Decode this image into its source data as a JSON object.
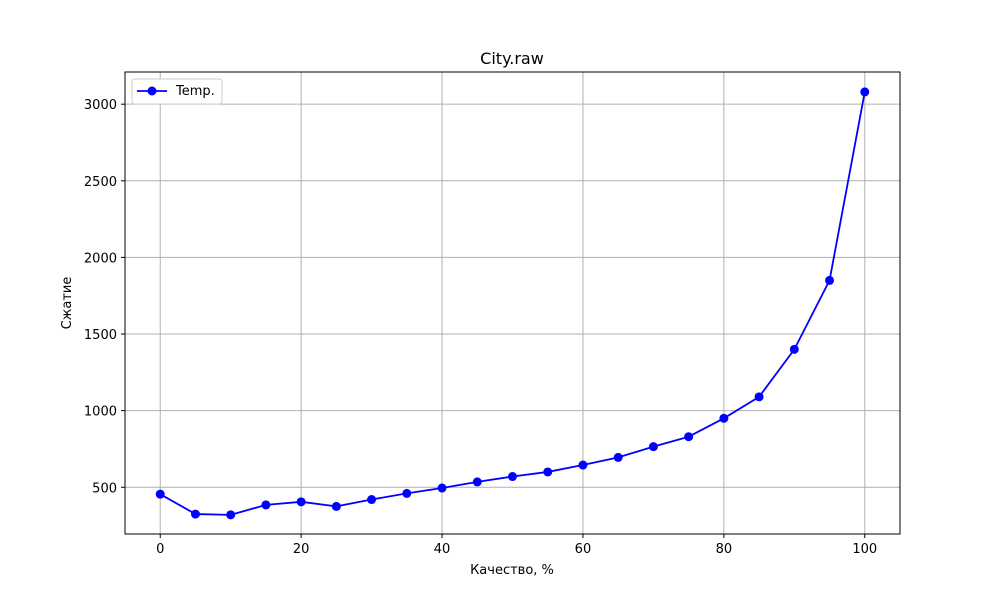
{
  "chart_data": {
    "type": "line",
    "title": "City.raw",
    "xlabel": "Качество, %",
    "ylabel": "Сжатие",
    "xlim": [
      -5,
      105
    ],
    "ylim": [
      195,
      3210
    ],
    "xticks": [
      0,
      20,
      40,
      60,
      80,
      100
    ],
    "yticks": [
      500,
      1000,
      1500,
      2000,
      2500,
      3000
    ],
    "grid": true,
    "legend_position": "top-left",
    "series": [
      {
        "name": "Temp.",
        "color": "#0000ff",
        "marker": "circle",
        "x": [
          0,
          5,
          10,
          15,
          20,
          25,
          30,
          35,
          40,
          45,
          50,
          55,
          60,
          65,
          70,
          75,
          80,
          85,
          90,
          95,
          100
        ],
        "y": [
          455,
          325,
          320,
          385,
          405,
          375,
          420,
          460,
          495,
          535,
          570,
          600,
          645,
          695,
          765,
          830,
          950,
          1090,
          1400,
          1850,
          3080
        ]
      }
    ]
  }
}
